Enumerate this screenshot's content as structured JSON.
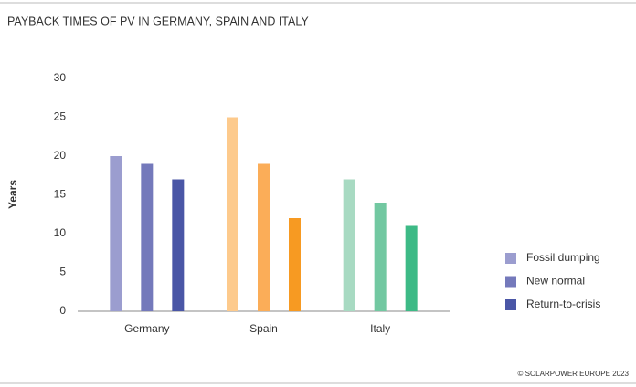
{
  "chart_data": {
    "type": "bar",
    "title": "PAYBACK TIMES OF PV IN GERMANY, SPAIN AND ITALY",
    "y_label": "Years",
    "categories": [
      "Germany",
      "Spain",
      "Italy"
    ],
    "series": [
      {
        "name": "Fossil dumping",
        "color": "#9b9dcf",
        "colors": [
          "#9b9dcf",
          "#fdca8c",
          "#a8dac2"
        ],
        "values": [
          20,
          25,
          17
        ]
      },
      {
        "name": "New normal",
        "color": "#7479bb",
        "colors": [
          "#7479bb",
          "#fbad58",
          "#72c8a1"
        ],
        "values": [
          19,
          19,
          14
        ]
      },
      {
        "name": "Return-to-crisis",
        "color": "#4a56a6",
        "colors": [
          "#4a56a6",
          "#f79a22",
          "#3dba86"
        ],
        "values": [
          17,
          12,
          11
        ]
      }
    ],
    "ylim": [
      0,
      30
    ],
    "yticks": [
      0,
      5,
      10,
      15,
      20,
      25,
      30
    ],
    "legend": "right",
    "source": "© SOLARPOWER EUROPE 2023"
  }
}
